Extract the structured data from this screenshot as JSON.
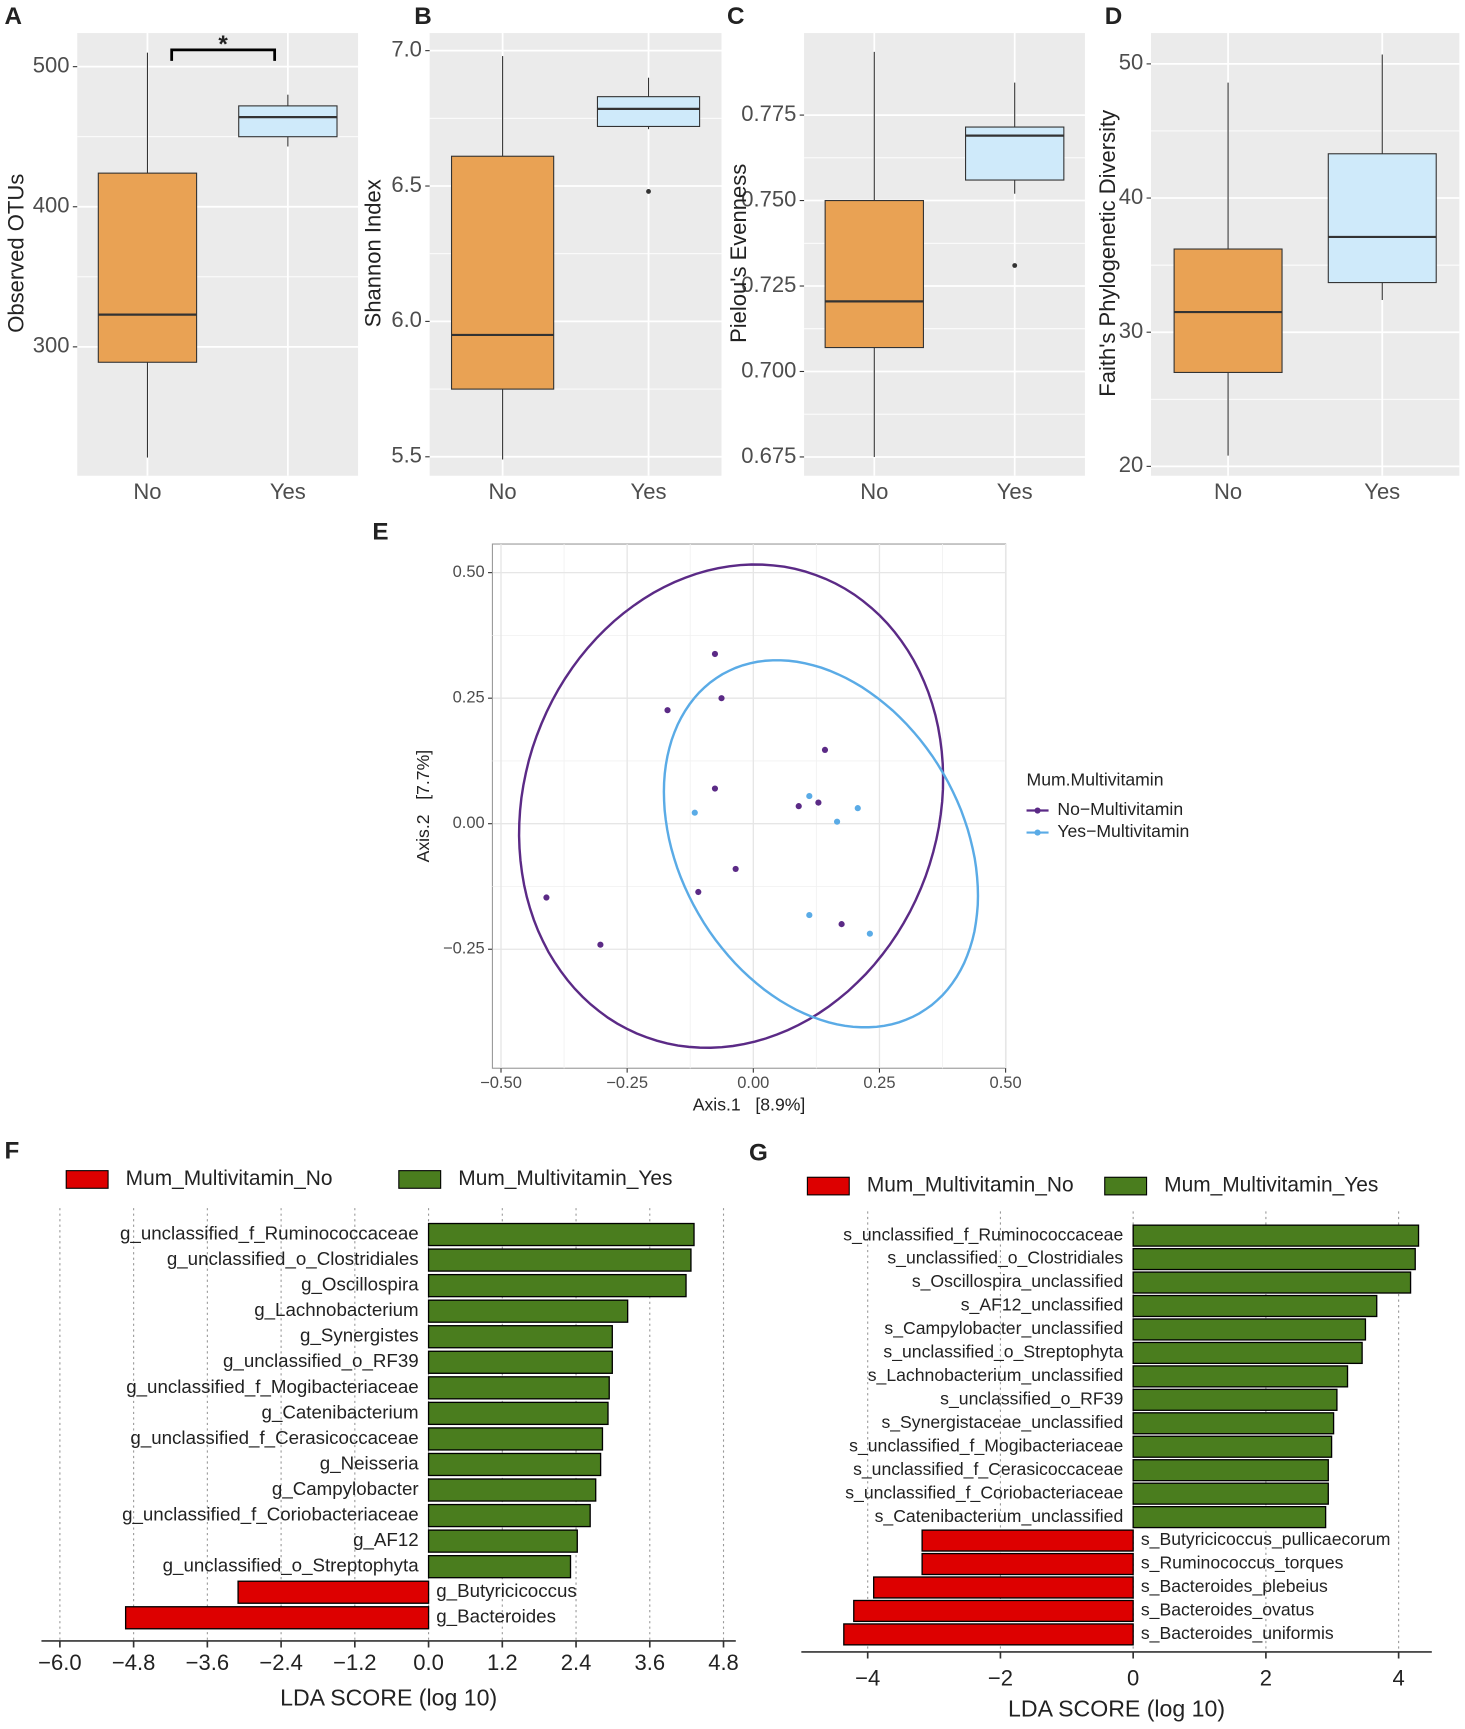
{
  "chart_data": [
    {
      "label": "A",
      "type": "box",
      "ylabel": "Observed OTUs",
      "categories": [
        "No",
        "Yes"
      ],
      "colors": [
        "#e9a254",
        "#cfeafa"
      ],
      "boxes": [
        {
          "whislo": 221,
          "q1": 289,
          "med": 323,
          "q3": 424,
          "whishi": 510,
          "fliers": []
        },
        {
          "whislo": 443,
          "q1": 450,
          "med": 464,
          "q3": 472,
          "whishi": 480,
          "fliers": []
        }
      ],
      "ylim": [
        208,
        524
      ],
      "yticks": [
        300,
        400,
        500
      ],
      "annotations": [
        {
          "text": "*",
          "y": 512
        }
      ]
    },
    {
      "label": "B",
      "type": "box",
      "ylabel": "Shannon Index",
      "categories": [
        "No",
        "Yes"
      ],
      "colors": [
        "#e9a254",
        "#cfeafa"
      ],
      "boxes": [
        {
          "whislo": 5.49,
          "q1": 5.75,
          "med": 5.95,
          "q3": 6.61,
          "whishi": 6.98,
          "fliers": []
        },
        {
          "whislo": 6.71,
          "q1": 6.72,
          "med": 6.785,
          "q3": 6.83,
          "whishi": 6.9,
          "fliers": [
            6.48
          ]
        }
      ],
      "ylim": [
        5.43,
        7.065
      ],
      "yticks": [
        {
          "value": 5.5,
          "label": "5.5"
        },
        {
          "value": 6,
          "label": "6.0"
        },
        {
          "value": 6.5,
          "label": "6.5"
        },
        {
          "value": 7,
          "label": "7.0"
        }
      ]
    },
    {
      "label": "C",
      "type": "box",
      "ylabel": "Pielou's Evenness",
      "categories": [
        "No",
        "Yes"
      ],
      "colors": [
        "#e9a254",
        "#cfeafa"
      ],
      "boxes": [
        {
          "whislo": 0.675,
          "q1": 0.707,
          "med": 0.7205,
          "q3": 0.75,
          "whishi": 0.7935,
          "fliers": []
        },
        {
          "whislo": 0.752,
          "q1": 0.756,
          "med": 0.769,
          "q3": 0.7715,
          "whishi": 0.7845,
          "fliers": [
            0.731
          ]
        }
      ],
      "ylim": [
        0.6695,
        0.799
      ],
      "yticks": [
        0.675,
        {
          "value": 0.7,
          "label": "0.700"
        },
        0.725,
        {
          "value": 0.75,
          "label": "0.750"
        },
        0.775
      ]
    },
    {
      "label": "D",
      "type": "box",
      "ylabel": "Faith's Phylogenetic Diversity",
      "categories": [
        "No",
        "Yes"
      ],
      "colors": [
        "#e9a254",
        "#cfeafa"
      ],
      "boxes": [
        {
          "whislo": 20.8,
          "q1": 27,
          "med": 31.5,
          "q3": 36.2,
          "whishi": 48.6,
          "fliers": []
        },
        {
          "whislo": 32.4,
          "q1": 33.7,
          "med": 37.1,
          "q3": 43.3,
          "whishi": 50.7,
          "fliers": []
        }
      ],
      "ylim": [
        19.3,
        52.3
      ],
      "yticks": [
        20,
        30,
        40,
        50
      ]
    },
    {
      "label": "E",
      "type": "scatter",
      "xlabel": "Axis.1   [8.9%]",
      "ylabel": "Axis.2   [7.7%]",
      "legend_title": "Mum.Multivitamin",
      "series": [
        {
          "name": "No−Multivitamin",
          "color": "#5b2a86",
          "x": [
            -0.076,
            -0.063,
            -0.17,
            0.142,
            -0.076,
            0.09,
            0.129,
            -0.035,
            -0.109,
            0.175,
            -0.41,
            -0.303
          ],
          "y": [
            0.338,
            0.25,
            0.226,
            0.147,
            0.07,
            0.035,
            0.042,
            -0.09,
            -0.136,
            -0.2,
            -0.147,
            -0.241
          ],
          "ellipse": {
            "cx": -0.044,
            "cy": 0.035,
            "a": 0.49,
            "b": 0.41,
            "angle": 70
          }
        },
        {
          "name": "Yes−Multivitamin",
          "color": "#5aabe6",
          "x": [
            -0.116,
            0.111,
            0.166,
            0.207,
            0.111,
            0.231
          ],
          "y": [
            0.022,
            0.055,
            0.004,
            0.031,
            -0.182,
            -0.219
          ],
          "ellipse": {
            "cx": 0.134,
            "cy": -0.04,
            "a": 0.39,
            "b": 0.28,
            "angle": 120
          }
        }
      ],
      "xlim": [
        -0.517,
        0.5
      ],
      "ylim": [
        -0.487,
        0.557
      ],
      "xticks": [
        {
          "value": -0.5,
          "label": "−0.50"
        },
        {
          "value": -0.25,
          "label": "−0.25"
        },
        {
          "value": 0,
          "label": "0.00"
        },
        0.25,
        {
          "value": 0.5,
          "label": "0.50"
        }
      ],
      "yticks": [
        {
          "value": -0.25,
          "label": "−0.25"
        },
        {
          "value": 0,
          "label": "0.00"
        },
        0.25,
        {
          "value": 0.5,
          "label": "0.50"
        }
      ],
      "grid": true
    },
    {
      "label": "F",
      "type": "barh",
      "xlabel": "LDA SCORE (log 10)",
      "categories": [
        "g_unclassified_f_Ruminococcaceae",
        "g_unclassified_o_Clostridiales",
        "g_Oscillospira",
        "g_Lachnobacterium",
        "g_Synergistes",
        "g_unclassified_o_RF39",
        "g_unclassified_f_Mogibacteriaceae",
        "g_Catenibacterium",
        "g_unclassified_f_Cerasicoccaceae",
        "g_Neisseria",
        "g_Campylobacter",
        "g_unclassified_f_Coriobacteriaceae",
        "g_AF12",
        "g_unclassified_o_Streptophyta",
        "g_Butyricicoccus",
        "g_Bacteroides"
      ],
      "series": [
        {
          "name": "Mum_Multivitamin_No",
          "color": "#dd0000",
          "values": [
            null,
            null,
            null,
            null,
            null,
            null,
            null,
            null,
            null,
            null,
            null,
            null,
            null,
            null,
            -3.1,
            -4.93
          ]
        },
        {
          "name": "Mum_Multivitamin_Yes",
          "color": "#4a7d1e",
          "values": [
            4.32,
            4.27,
            4.19,
            3.24,
            2.99,
            2.99,
            2.94,
            2.92,
            2.83,
            2.8,
            2.72,
            2.63,
            2.42,
            2.31,
            null,
            null
          ]
        }
      ],
      "xlim": [
        -6.3,
        5.0
      ],
      "xticks": [
        {
          "value": -6,
          "label": "−6.0"
        },
        {
          "value": -4.8,
          "label": "−4.8"
        },
        {
          "value": -3.6,
          "label": "−3.6"
        },
        {
          "value": -2.4,
          "label": "−2.4"
        },
        {
          "value": -1.2,
          "label": "−1.2"
        },
        {
          "value": 0,
          "label": "0.0"
        },
        1.2,
        2.4,
        3.6,
        4.8
      ],
      "grid": true
    },
    {
      "label": "G",
      "type": "barh",
      "xlabel": "LDA SCORE (log 10)",
      "categories": [
        "s_unclassified_f_Ruminococcaceae",
        "s_unclassified_o_Clostridiales",
        "s_Oscillospira_unclassified",
        "s_AF12_unclassified",
        "s_Campylobacter_unclassified",
        "s_unclassified_o_Streptophyta",
        "s_Lachnobacterium_unclassified",
        "s_unclassified_o_RF39",
        "s_Synergistaceae_unclassified",
        "s_unclassified_f_Mogibacteriaceae",
        "s_unclassified_f_Cerasicoccaceae",
        "s_unclassified_f_Coriobacteriaceae",
        "s_Catenibacterium_unclassified",
        "s_Butyricicoccus_pullicaecorum",
        "s_Ruminococcus_torques",
        "s_Bacteroides_plebeius",
        "s_Bacteroides_ovatus",
        "s_Bacteroides_uniformis"
      ],
      "series": [
        {
          "name": "Mum_Multivitamin_No",
          "color": "#dd0000",
          "values": [
            null,
            null,
            null,
            null,
            null,
            null,
            null,
            null,
            null,
            null,
            null,
            null,
            null,
            -3.18,
            -3.18,
            -3.91,
            -4.21,
            -4.36
          ]
        },
        {
          "name": "Mum_Multivitamin_Yes",
          "color": "#4a7d1e",
          "values": [
            4.3,
            4.25,
            4.18,
            3.67,
            3.5,
            3.45,
            3.23,
            3.07,
            3.02,
            2.99,
            2.94,
            2.94,
            2.9,
            null,
            null,
            null,
            null,
            null
          ]
        }
      ],
      "xlim": [
        -5.0,
        4.5
      ],
      "xticks": [
        {
          "value": -4,
          "label": "−4"
        },
        {
          "value": -2,
          "label": "−2"
        },
        0,
        2,
        4
      ],
      "grid": true
    }
  ]
}
